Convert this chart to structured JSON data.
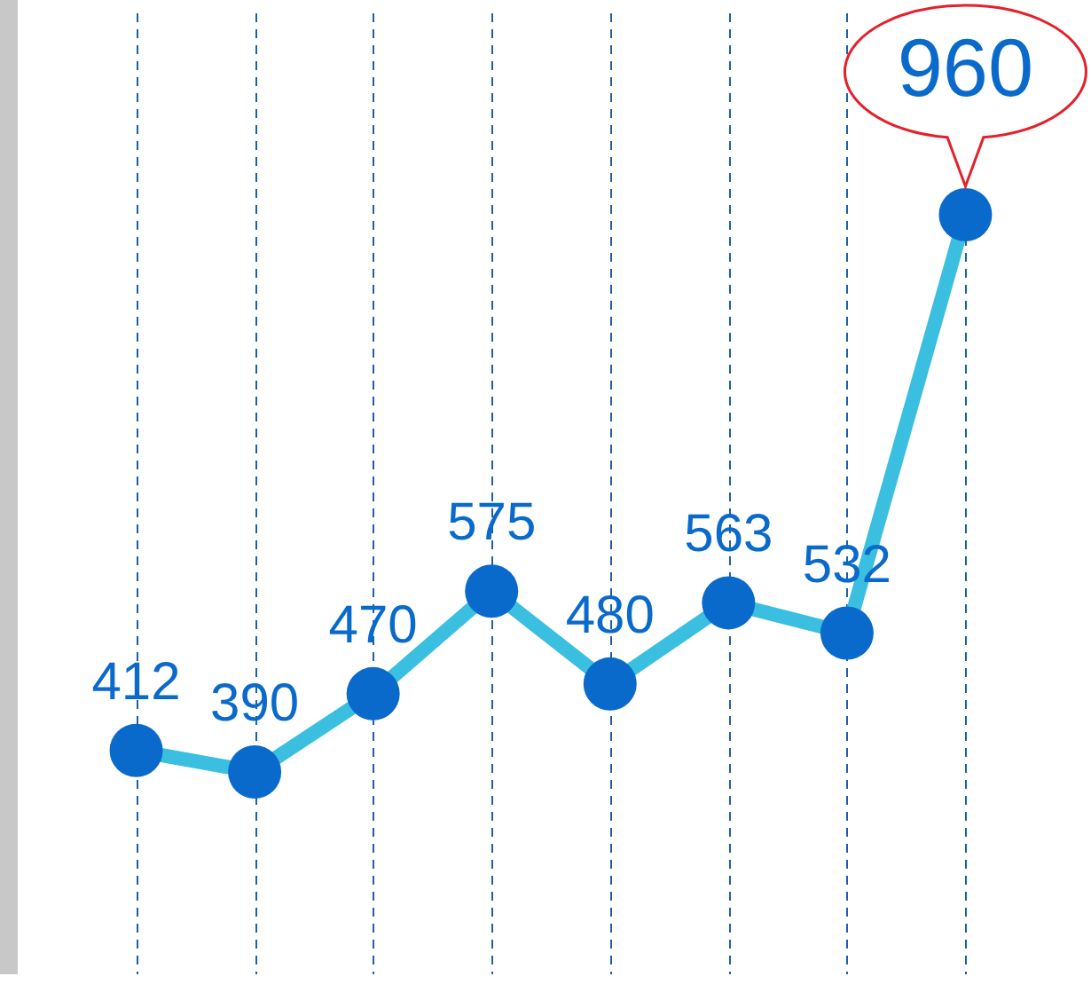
{
  "chart_data": {
    "type": "line",
    "categories": [
      null,
      null,
      null,
      null,
      null,
      null,
      null,
      null
    ],
    "series": [
      {
        "color": "#3bbfe0",
        "values": [
          412,
          390,
          470,
          575,
          480,
          563,
          532,
          960
        ]
      }
    ],
    "marker": "circle",
    "grid": "x",
    "tick_labels": false,
    "data_labels": true
  }
}
